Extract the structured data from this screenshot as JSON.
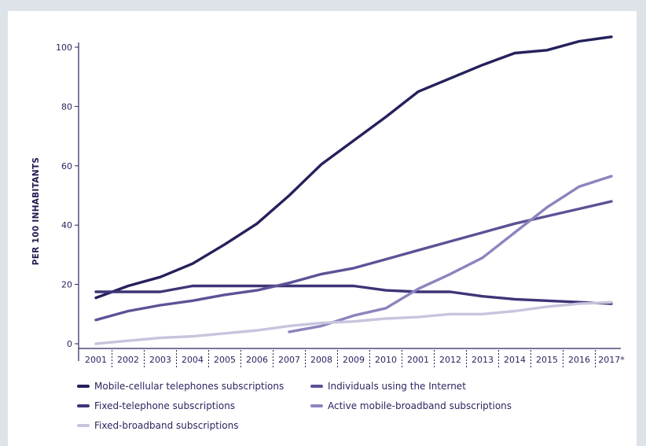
{
  "chart_data": {
    "type": "line",
    "title": "",
    "xlabel": "",
    "ylabel": "PER 100 INHABITANTS",
    "ylim": [
      0,
      100
    ],
    "yticks": [
      "0",
      "20",
      "40",
      "60",
      "80",
      "100"
    ],
    "categories": [
      "2001",
      "2002",
      "2003",
      "2004",
      "2005",
      "2006",
      "2007",
      "2008",
      "2009",
      "2010",
      "2001",
      "2012",
      "2013",
      "2014",
      "2015",
      "2016",
      "2017*"
    ],
    "grid": false,
    "legend_position": "bottom",
    "series": [
      {
        "name": "Mobile-cellular telephones subscriptions",
        "color": "#25215c",
        "values": [
          15.5,
          19.5,
          22.5,
          27,
          33.5,
          40.5,
          50,
          60.5,
          68.5,
          76.5,
          85,
          89.5,
          94,
          98,
          99,
          102,
          103.5
        ]
      },
      {
        "name": "Fixed-telephone subscriptions",
        "color": "#3d3576",
        "values": [
          17.5,
          17.5,
          17.5,
          19.5,
          19.5,
          19.5,
          19.5,
          19.5,
          19.5,
          18,
          17.5,
          17.5,
          16,
          15,
          14.5,
          14,
          13.5
        ]
      },
      {
        "name": "Fixed-broadband subscriptions",
        "color": "#c6c5dd",
        "values": [
          0,
          1,
          2,
          2.5,
          3.5,
          4.5,
          6,
          7,
          7.5,
          8.5,
          9,
          10,
          10,
          11,
          12.5,
          13.5,
          14
        ]
      },
      {
        "name": "Individuals using the Internet",
        "color": "#5b5396",
        "values": [
          8,
          11,
          13,
          14.5,
          16.5,
          18,
          20.5,
          23.5,
          25.5,
          28.5,
          31.5,
          34.5,
          37.5,
          40.5,
          43,
          45.5,
          48
        ]
      },
      {
        "name": "Active mobile-broadband subscriptions",
        "color": "#8b85bd",
        "values": [
          null,
          null,
          null,
          null,
          null,
          null,
          4,
          6,
          9.5,
          12,
          18.5,
          23.5,
          29,
          37.5,
          46,
          53,
          56.5
        ]
      }
    ]
  }
}
